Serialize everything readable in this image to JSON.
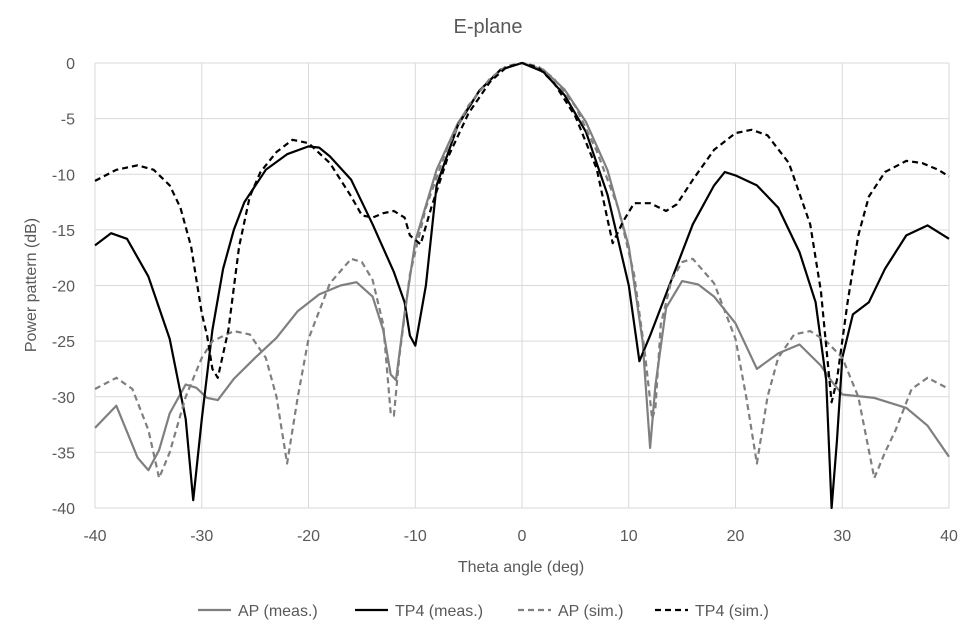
{
  "chart_data": {
    "type": "line",
    "title": "E-plane",
    "xlabel": "Theta angle (deg)",
    "ylabel": "Power pattern (dB)",
    "xlim": [
      -40,
      40
    ],
    "ylim": [
      -40,
      0
    ],
    "xticks": [
      -40,
      -30,
      -20,
      -10,
      0,
      10,
      20,
      30,
      40
    ],
    "yticks": [
      0,
      -5,
      -10,
      -15,
      -20,
      -25,
      -30,
      -35,
      -40
    ],
    "grid": true,
    "legend_position": "bottom",
    "series": [
      {
        "name": "AP (meas.)",
        "color": "#7f7f7f",
        "dash": "solid",
        "points": [
          [
            -40,
            -32.8
          ],
          [
            -38,
            -30.8
          ],
          [
            -36,
            -35.5
          ],
          [
            -35,
            -36.6
          ],
          [
            -34,
            -34.8
          ],
          [
            -33,
            -31.5
          ],
          [
            -31.5,
            -28.9
          ],
          [
            -30.5,
            -29.2
          ],
          [
            -29.5,
            -30.1
          ],
          [
            -28.5,
            -30.3
          ],
          [
            -27,
            -28.4
          ],
          [
            -25,
            -26.5
          ],
          [
            -23,
            -24.7
          ],
          [
            -21,
            -22.3
          ],
          [
            -19,
            -20.8
          ],
          [
            -17,
            -20.0
          ],
          [
            -15.5,
            -19.7
          ],
          [
            -14,
            -21.0
          ],
          [
            -13,
            -24.0
          ],
          [
            -12.3,
            -28.0
          ],
          [
            -11.8,
            -28.5
          ],
          [
            -11,
            -22.5
          ],
          [
            -10,
            -16.0
          ],
          [
            -8,
            -9.6
          ],
          [
            -6,
            -5.4
          ],
          [
            -4,
            -2.5
          ],
          [
            -2,
            -0.6
          ],
          [
            0,
            0
          ],
          [
            2,
            -0.6
          ],
          [
            4,
            -2.4
          ],
          [
            6,
            -5.3
          ],
          [
            8,
            -9.6
          ],
          [
            10,
            -16.5
          ],
          [
            11.3,
            -25.0
          ],
          [
            12,
            -34.6
          ],
          [
            12.5,
            -29.0
          ],
          [
            13.5,
            -22.0
          ],
          [
            15,
            -19.6
          ],
          [
            16.5,
            -19.9
          ],
          [
            18,
            -21.0
          ],
          [
            20,
            -23.4
          ],
          [
            22,
            -27.5
          ],
          [
            24,
            -26.1
          ],
          [
            26,
            -25.3
          ],
          [
            28,
            -27.2
          ],
          [
            29,
            -28.6
          ],
          [
            30,
            -29.8
          ],
          [
            33,
            -30.1
          ],
          [
            36,
            -31.0
          ],
          [
            38,
            -32.6
          ],
          [
            40,
            -35.4
          ]
        ]
      },
      {
        "name": "TP4 (meas.)",
        "color": "#000000",
        "dash": "solid",
        "points": [
          [
            -40,
            -16.4
          ],
          [
            -38.5,
            -15.3
          ],
          [
            -37,
            -15.8
          ],
          [
            -35,
            -19.2
          ],
          [
            -33,
            -24.8
          ],
          [
            -31.5,
            -32.0
          ],
          [
            -30.8,
            -39.3
          ],
          [
            -30,
            -32.0
          ],
          [
            -29,
            -24.0
          ],
          [
            -28,
            -18.5
          ],
          [
            -27,
            -15.0
          ],
          [
            -26,
            -12.5
          ],
          [
            -24,
            -9.6
          ],
          [
            -22,
            -8.2
          ],
          [
            -20,
            -7.5
          ],
          [
            -19,
            -7.6
          ],
          [
            -18,
            -8.4
          ],
          [
            -16,
            -10.5
          ],
          [
            -14,
            -14.5
          ],
          [
            -12,
            -18.8
          ],
          [
            -11,
            -21.5
          ],
          [
            -10.5,
            -24.5
          ],
          [
            -10,
            -25.4
          ],
          [
            -9,
            -20.0
          ],
          [
            -8,
            -11.0
          ],
          [
            -6,
            -5.6
          ],
          [
            -4,
            -2.5
          ],
          [
            -2,
            -0.6
          ],
          [
            0,
            0
          ],
          [
            2,
            -0.8
          ],
          [
            4,
            -2.9
          ],
          [
            6,
            -6.2
          ],
          [
            8,
            -11.8
          ],
          [
            10,
            -20.0
          ],
          [
            11,
            -26.8
          ],
          [
            12,
            -24.5
          ],
          [
            14,
            -19.5
          ],
          [
            16,
            -14.5
          ],
          [
            18,
            -11.0
          ],
          [
            19,
            -9.8
          ],
          [
            20,
            -10.1
          ],
          [
            22,
            -11.0
          ],
          [
            24,
            -13.0
          ],
          [
            26,
            -17.0
          ],
          [
            27.5,
            -21.5
          ],
          [
            28.5,
            -28.5
          ],
          [
            29,
            -40.0
          ],
          [
            29.5,
            -34.0
          ],
          [
            30,
            -26.5
          ],
          [
            31,
            -22.6
          ],
          [
            32.5,
            -21.5
          ],
          [
            34,
            -18.5
          ],
          [
            36,
            -15.5
          ],
          [
            38,
            -14.6
          ],
          [
            40,
            -15.8
          ]
        ]
      },
      {
        "name": "AP (sim.)",
        "color": "#7f7f7f",
        "dash": "dashed",
        "points": [
          [
            -40,
            -29.3
          ],
          [
            -38,
            -28.3
          ],
          [
            -36.5,
            -29.3
          ],
          [
            -35,
            -33.0
          ],
          [
            -34,
            -37.3
          ],
          [
            -33,
            -35.0
          ],
          [
            -31.5,
            -30.0
          ],
          [
            -30,
            -26.5
          ],
          [
            -29,
            -25.0
          ],
          [
            -27,
            -24.1
          ],
          [
            -25.5,
            -24.4
          ],
          [
            -24,
            -26.5
          ],
          [
            -23,
            -30.0
          ],
          [
            -22,
            -36.0
          ],
          [
            -21,
            -30.0
          ],
          [
            -20,
            -24.8
          ],
          [
            -18,
            -19.8
          ],
          [
            -16,
            -17.6
          ],
          [
            -15,
            -17.9
          ],
          [
            -14,
            -19.5
          ],
          [
            -13,
            -23.5
          ],
          [
            -12.3,
            -31.5
          ],
          [
            -12,
            -31.7
          ],
          [
            -11.5,
            -26.5
          ],
          [
            -10.5,
            -19.0
          ],
          [
            -9,
            -13.0
          ],
          [
            -7,
            -7.6
          ],
          [
            -5,
            -3.8
          ],
          [
            -3,
            -1.4
          ],
          [
            -1.5,
            -0.3
          ],
          [
            0,
            0
          ],
          [
            1.5,
            -0.3
          ],
          [
            3,
            -1.4
          ],
          [
            5,
            -3.9
          ],
          [
            7,
            -7.9
          ],
          [
            9,
            -13.0
          ],
          [
            10.5,
            -19.0
          ],
          [
            11.5,
            -26.0
          ],
          [
            12.2,
            -32.0
          ],
          [
            12.5,
            -31.0
          ],
          [
            13,
            -23.5
          ],
          [
            14,
            -19.5
          ],
          [
            15,
            -17.9
          ],
          [
            16,
            -17.6
          ],
          [
            18,
            -19.8
          ],
          [
            20,
            -24.8
          ],
          [
            21,
            -30.0
          ],
          [
            22,
            -36.0
          ],
          [
            23,
            -30.0
          ],
          [
            24,
            -26.5
          ],
          [
            25.5,
            -24.4
          ],
          [
            27,
            -24.1
          ],
          [
            28.5,
            -25.0
          ],
          [
            30,
            -26.5
          ],
          [
            31.5,
            -30.0
          ],
          [
            33,
            -37.3
          ],
          [
            34,
            -35.0
          ],
          [
            35,
            -33.0
          ],
          [
            36.5,
            -29.3
          ],
          [
            38,
            -28.3
          ],
          [
            40,
            -29.3
          ]
        ]
      },
      {
        "name": "TP4 (sim.)",
        "color": "#000000",
        "dash": "dashed",
        "points": [
          [
            -40,
            -10.6
          ],
          [
            -38,
            -9.6
          ],
          [
            -36,
            -9.2
          ],
          [
            -34.5,
            -9.6
          ],
          [
            -33,
            -11.0
          ],
          [
            -32,
            -13.0
          ],
          [
            -31,
            -16.5
          ],
          [
            -30,
            -22.5
          ],
          [
            -29.5,
            -24.5
          ],
          [
            -29,
            -27.5
          ],
          [
            -28.5,
            -28.3
          ],
          [
            -27.5,
            -24.0
          ],
          [
            -26.5,
            -16.5
          ],
          [
            -25.5,
            -12.0
          ],
          [
            -24.5,
            -9.8
          ],
          [
            -23,
            -8.0
          ],
          [
            -21.5,
            -6.9
          ],
          [
            -20,
            -7.2
          ],
          [
            -18,
            -9.0
          ],
          [
            -16,
            -12.0
          ],
          [
            -15,
            -13.7
          ],
          [
            -14,
            -13.9
          ],
          [
            -13,
            -13.5
          ],
          [
            -12,
            -13.3
          ],
          [
            -11,
            -13.9
          ],
          [
            -10.5,
            -15.5
          ],
          [
            -9.5,
            -16.3
          ],
          [
            -8.5,
            -13.0
          ],
          [
            -7,
            -8.6
          ],
          [
            -5,
            -4.5
          ],
          [
            -3,
            -1.7
          ],
          [
            -1.5,
            -0.4
          ],
          [
            0,
            0
          ],
          [
            1.5,
            -0.4
          ],
          [
            3,
            -1.8
          ],
          [
            5,
            -4.8
          ],
          [
            7,
            -9.5
          ],
          [
            8,
            -14.0
          ],
          [
            8.5,
            -16.2
          ],
          [
            9.5,
            -14.2
          ],
          [
            10.5,
            -12.6
          ],
          [
            12,
            -12.6
          ],
          [
            13.5,
            -13.3
          ],
          [
            14.5,
            -12.7
          ],
          [
            16,
            -10.5
          ],
          [
            18,
            -7.8
          ],
          [
            20,
            -6.3
          ],
          [
            21.5,
            -6.0
          ],
          [
            23,
            -6.5
          ],
          [
            25,
            -9.0
          ],
          [
            27,
            -14.5
          ],
          [
            28,
            -20.5
          ],
          [
            29,
            -30.5
          ],
          [
            29.5,
            -28.5
          ],
          [
            30.5,
            -21.5
          ],
          [
            31.5,
            -15.5
          ],
          [
            32.5,
            -12.0
          ],
          [
            34,
            -9.8
          ],
          [
            36,
            -8.8
          ],
          [
            37.5,
            -9.0
          ],
          [
            39,
            -9.6
          ],
          [
            40,
            -10.2
          ]
        ]
      }
    ]
  }
}
